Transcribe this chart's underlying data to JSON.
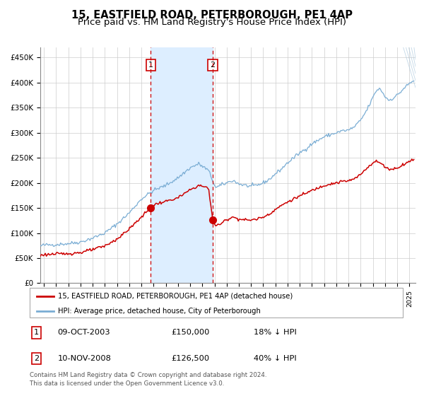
{
  "title": "15, EASTFIELD ROAD, PETERBOROUGH, PE1 4AP",
  "subtitle": "Price paid vs. HM Land Registry's House Price Index (HPI)",
  "legend_line1": "15, EASTFIELD ROAD, PETERBOROUGH, PE1 4AP (detached house)",
  "legend_line2": "HPI: Average price, detached house, City of Peterborough",
  "note1": "Contains HM Land Registry data © Crown copyright and database right 2024.",
  "note2": "This data is licensed under the Open Government Licence v3.0.",
  "table_row1": [
    "1",
    "09-OCT-2003",
    "£150,000",
    "18% ↓ HPI"
  ],
  "table_row2": [
    "2",
    "10-NOV-2008",
    "£126,500",
    "40% ↓ HPI"
  ],
  "sale1_date_num": 2003.77,
  "sale1_price": 150000,
  "sale2_date_num": 2008.86,
  "sale2_price": 126500,
  "red_line_color": "#cc0000",
  "blue_line_color": "#7aadd4",
  "shade_color": "#ddeeff",
  "vline_color": "#cc0000",
  "dot_color": "#cc0000",
  "ylim": [
    0,
    470000
  ],
  "xlim_start": 1994.7,
  "xlim_end": 2025.5,
  "background_color": "#ffffff",
  "grid_color": "#cccccc",
  "title_fontsize": 10.5,
  "subtitle_fontsize": 9.5
}
